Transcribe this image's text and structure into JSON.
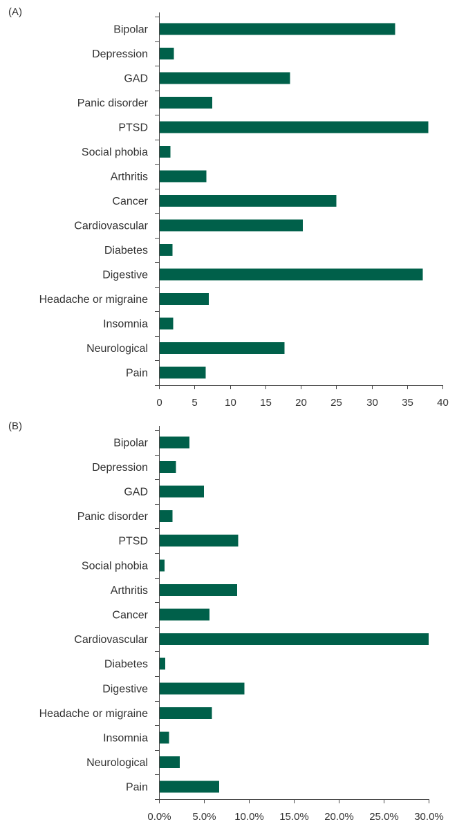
{
  "bar_color": "#00604a",
  "chart_data": [
    {
      "panel_label": "(A)",
      "type": "bar",
      "orientation": "horizontal",
      "categories": [
        "Bipolar",
        "Depression",
        "GAD",
        "Panic disorder",
        "PTSD",
        "Social phobia",
        "Arthritis",
        "Cancer",
        "Cardiovascular",
        "Diabetes",
        "Digestive",
        "Headache or migraine",
        "Insomnia",
        "Neurological",
        "Pain"
      ],
      "values": [
        33.3,
        2.1,
        18.5,
        7.5,
        38.0,
        1.6,
        6.7,
        25.0,
        20.3,
        1.9,
        37.2,
        7.0,
        2.0,
        17.7,
        6.6
      ],
      "xlim": [
        0,
        40
      ],
      "ticks": [
        0,
        5,
        10,
        15,
        20,
        25,
        30,
        35,
        40
      ],
      "tick_labels": [
        "0",
        "5",
        "10",
        "15",
        "20",
        "25",
        "30",
        "35",
        "40"
      ],
      "xlabel": "",
      "ylabel": ""
    },
    {
      "panel_label": "(B)",
      "type": "bar",
      "orientation": "horizontal",
      "categories": [
        "Bipolar",
        "Depression",
        "GAD",
        "Panic disorder",
        "PTSD",
        "Social phobia",
        "Arthritis",
        "Cancer",
        "Cardiovascular",
        "Diabetes",
        "Digestive",
        "Headache or migraine",
        "Insomnia",
        "Neurological",
        "Pain"
      ],
      "values": [
        3.4,
        1.9,
        5.0,
        1.5,
        8.8,
        0.6,
        8.7,
        5.6,
        30.0,
        0.7,
        9.5,
        5.9,
        1.1,
        2.3,
        6.7
      ],
      "xlim": [
        0,
        30
      ],
      "ticks": [
        0,
        5,
        10,
        15,
        20,
        25,
        30
      ],
      "tick_labels": [
        "0.0%",
        "5.0%",
        "10.0%",
        "15.0%",
        "20.0%",
        "25.0%",
        "30.0%"
      ],
      "xlabel": "",
      "ylabel": ""
    }
  ]
}
